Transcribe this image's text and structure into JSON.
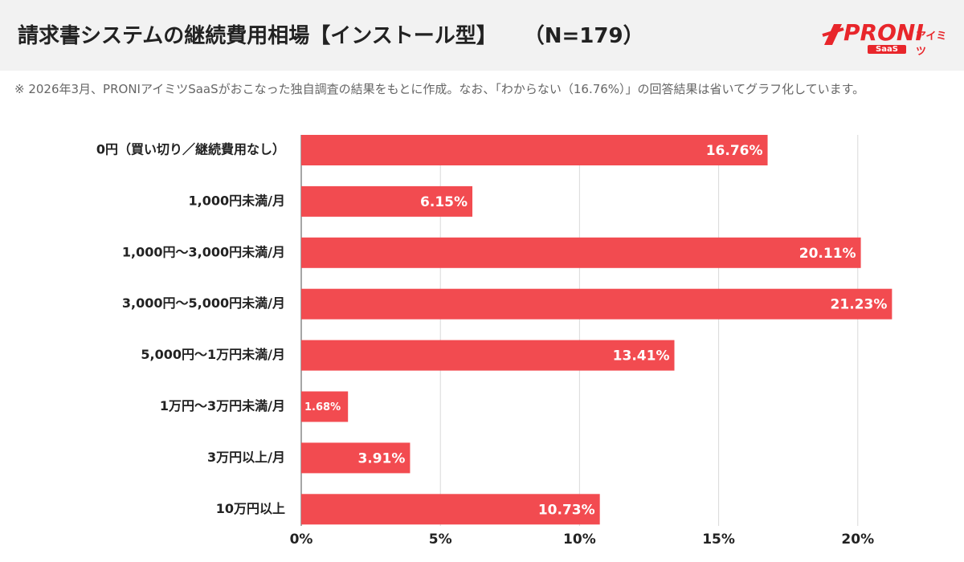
{
  "chart_data": {
    "type": "barh",
    "title": "請求書システムの継続費用相場【インストール型】",
    "sample_size": "（N=179）",
    "note": "※ 2026年3月、PRONIアイミツSaaSがおこなった独自調査の結果をもとに作成。なお、「わからない（16.76%）」の回答結果は省いてグラフ化しています。",
    "categories": [
      "0円（買い切り／継続費用なし）",
      "1,000円未満/月",
      "1,000円〜3,000円未満/月",
      "3,000円〜5,000円未満/月",
      "5,000円〜1万円未満/月",
      "1万円〜3万円未満/月",
      "3万円以上/月",
      "10万円以上"
    ],
    "values": [
      16.76,
      6.15,
      20.11,
      21.23,
      13.41,
      1.68,
      3.91,
      10.73
    ],
    "value_labels": [
      "16.76%",
      "6.15%",
      "20.11%",
      "21.23%",
      "13.41%",
      "1.68%",
      "3.91%",
      "10.73%"
    ],
    "color": "#f24b50",
    "xlim": [
      0,
      23.5
    ],
    "xticks": [
      {
        "value": 0,
        "label": "0%"
      },
      {
        "value": 5,
        "label": "5%"
      },
      {
        "value": 10,
        "label": "10%"
      },
      {
        "value": 15,
        "label": "15%"
      },
      {
        "value": 20,
        "label": "20%"
      }
    ],
    "grid": true
  },
  "logo": {
    "brand": "PRONI",
    "sub": "アイミツ",
    "tag": "SaaS"
  }
}
